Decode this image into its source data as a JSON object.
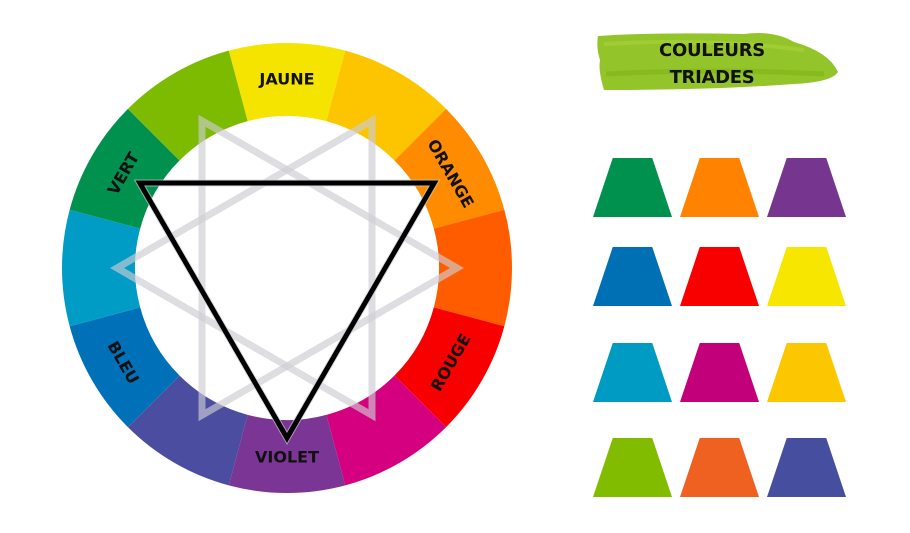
{
  "title": {
    "line1": "COULEURS",
    "line2": "TRIADES",
    "brush_color": "#8DC21F"
  },
  "wheel": {
    "segments": [
      {
        "color": "#F5E400",
        "label": "JAUNE"
      },
      {
        "color": "#FDC500",
        "label": ""
      },
      {
        "color": "#FF8B00",
        "label": "ORANGE"
      },
      {
        "color": "#FF5C00",
        "label": ""
      },
      {
        "color": "#F80000",
        "label": "ROUGE"
      },
      {
        "color": "#D5007F",
        "label": ""
      },
      {
        "color": "#7B3595",
        "label": "VIOLET"
      },
      {
        "color": "#4A4DA0",
        "label": ""
      },
      {
        "color": "#0070B9",
        "label": "BLEU"
      },
      {
        "color": "#009CC5",
        "label": ""
      },
      {
        "color": "#00914F",
        "label": "VERT"
      },
      {
        "color": "#7DBB00",
        "label": ""
      }
    ],
    "highlighted_triad": [
      "VERT",
      "ORANGE",
      "VIOLET"
    ]
  },
  "swatches": [
    [
      "#00914F",
      "#FF8300",
      "#76368F"
    ],
    [
      "#0070B5",
      "#F80000",
      "#F7E600"
    ],
    [
      "#009BC2",
      "#C2007A",
      "#FDC700"
    ],
    [
      "#82BC00",
      "#EE6120",
      "#464E9F"
    ]
  ]
}
